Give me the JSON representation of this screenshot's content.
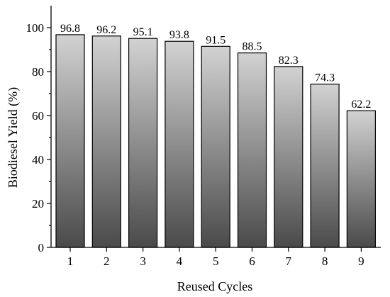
{
  "chart_data": {
    "type": "bar",
    "title": "",
    "xlabel": "Reused Cycles",
    "ylabel": "Biodiesel Yield (%)",
    "categories": [
      "1",
      "2",
      "3",
      "4",
      "5",
      "6",
      "7",
      "8",
      "9"
    ],
    "values": [
      96.8,
      96.2,
      95.1,
      93.8,
      91.5,
      88.5,
      82.3,
      74.3,
      62.2
    ],
    "data_labels": [
      "96.8",
      "96.2",
      "95.1",
      "93.8",
      "91.5",
      "88.5",
      "82.3",
      "74.3",
      "62.2"
    ],
    "ylim": [
      0,
      110
    ],
    "yticks": [
      0,
      20,
      40,
      60,
      80,
      100
    ],
    "ytick_labels": [
      "0",
      "20",
      "40",
      "60",
      "80",
      "100"
    ],
    "grid": false,
    "legend": "none",
    "bar_fill": "gradient",
    "colors": {
      "bar_top": "#d2d2d2",
      "bar_bottom": "#4a4a4a",
      "outline": "#000000"
    }
  }
}
